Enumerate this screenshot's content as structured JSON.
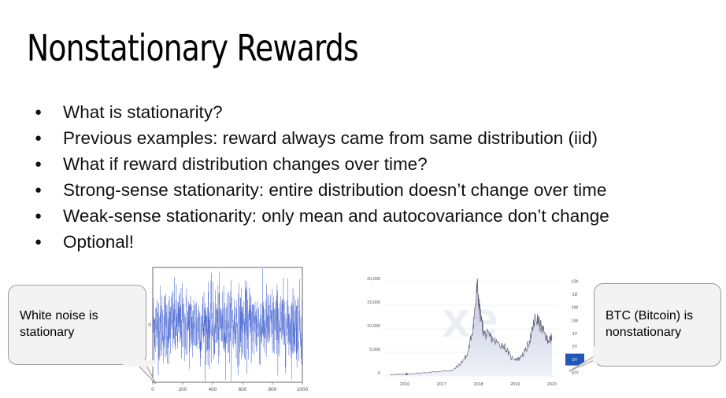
{
  "slide": {
    "title": "Nonstationary Rewards",
    "bullets": [
      "What is stationarity?",
      "Previous examples: reward always came from same distribution (iid)",
      "What if reward distribution changes over time?",
      "Strong-sense stationarity: entire distribution doesn’t change over time",
      "Weak-sense stationarity: only mean and autocovariance don’t change",
      "Optional!"
    ]
  },
  "callouts": {
    "white_noise": {
      "line1": "White noise is",
      "line2": "stationary"
    },
    "btc": {
      "line1": "BTC (Bitcoin) is",
      "line2": "nonstationary"
    }
  },
  "chart_data": [
    {
      "type": "line",
      "title": "",
      "xlabel": "",
      "ylabel": "",
      "x_ticks": [
        "0",
        "200",
        "400",
        "600",
        "800",
        "1000"
      ],
      "y_ticks": [
        "0"
      ],
      "xlim": [
        0,
        1000
      ],
      "ylim": [
        -3,
        3
      ],
      "series": [
        {
          "values_description_count": 1000,
          "mean": 0,
          "std": 1,
          "color": "#3355cc"
        }
      ]
    },
    {
      "type": "area",
      "title": "",
      "xlabel": "",
      "ylabel": "",
      "x_ticks": [
        "2016",
        "2017",
        "2018",
        "2019",
        "2020"
      ],
      "y_ticks": [
        "0",
        "5,000",
        "10,000",
        "15,000",
        "20,000"
      ],
      "ylim": [
        0,
        22000
      ],
      "range_buttons": [
        "12h",
        "1D",
        "1W",
        "1M",
        "1Y",
        "2Y",
        "5Y",
        "10Y"
      ],
      "selected_range": "5Y",
      "watermark": "xe",
      "series": [
        {
          "x": [
            2015.6,
            2016.0,
            2016.5,
            2017.0,
            2017.3,
            2017.5,
            2017.7,
            2017.85,
            2017.97,
            2018.05,
            2018.15,
            2018.3,
            2018.5,
            2018.7,
            2018.9,
            2019.1,
            2019.3,
            2019.45,
            2019.55,
            2019.7,
            2019.85,
            2019.95,
            2020.0
          ],
          "values": [
            300,
            400,
            650,
            1000,
            1200,
            2500,
            4500,
            10000,
            19000,
            13000,
            9000,
            8500,
            7000,
            6400,
            3800,
            3600,
            5500,
            9000,
            12500,
            10500,
            8000,
            7500,
            8500
          ],
          "color": "#5a6bd6"
        }
      ]
    }
  ]
}
